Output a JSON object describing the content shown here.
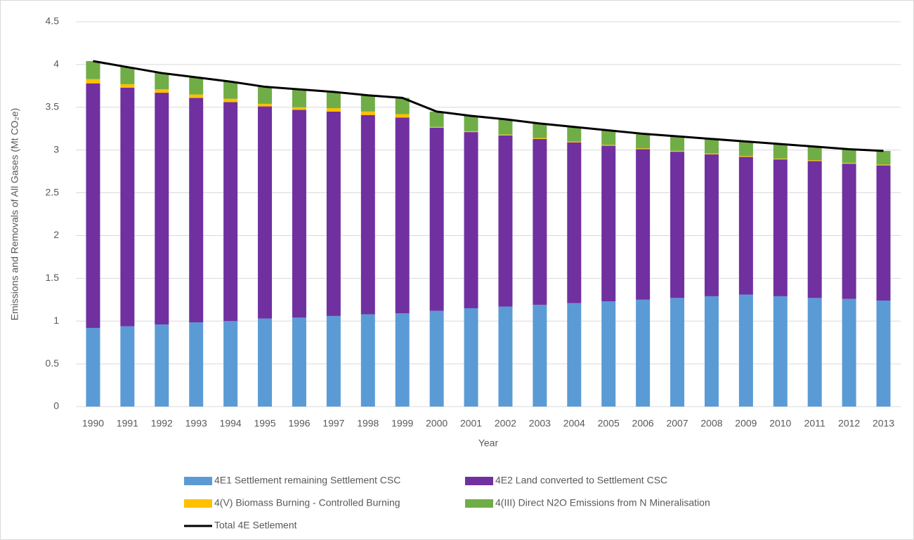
{
  "chart_data": {
    "type": "bar",
    "stacked": true,
    "x_label": "Year",
    "y_label": "Emissions and Removals of All Gases (Mt CO₂e)",
    "categories": [
      "1990",
      "1991",
      "1992",
      "1993",
      "1994",
      "1995",
      "1996",
      "1997",
      "1998",
      "1999",
      "2000",
      "2001",
      "2002",
      "2003",
      "2004",
      "2005",
      "2006",
      "2007",
      "2008",
      "2009",
      "2010",
      "2011",
      "2012",
      "2013"
    ],
    "series": [
      {
        "name": "4E1 Settlement remaining Settlement CSC",
        "color": "#5b9bd5",
        "values": [
          0.92,
          0.94,
          0.96,
          0.985,
          1.0,
          1.03,
          1.04,
          1.06,
          1.08,
          1.09,
          1.12,
          1.15,
          1.17,
          1.19,
          1.21,
          1.23,
          1.25,
          1.27,
          1.29,
          1.31,
          1.29,
          1.27,
          1.26,
          1.24
        ]
      },
      {
        "name": "4E2 Land converted to Settlement CSC",
        "color": "#7030a0",
        "values": [
          2.86,
          2.79,
          2.71,
          2.625,
          2.56,
          2.48,
          2.43,
          2.39,
          2.33,
          2.29,
          2.14,
          2.06,
          2.0,
          1.94,
          1.88,
          1.82,
          1.76,
          1.71,
          1.66,
          1.61,
          1.6,
          1.6,
          1.58,
          1.58
        ]
      },
      {
        "name": "4(V) Biomass Burning - Controlled Burning",
        "color": "#ffc000",
        "values": [
          0.05,
          0.04,
          0.04,
          0.04,
          0.04,
          0.03,
          0.03,
          0.04,
          0.04,
          0.04,
          0.01,
          0.01,
          0.01,
          0.01,
          0.01,
          0.01,
          0.01,
          0.01,
          0.01,
          0.01,
          0.01,
          0.01,
          0.01,
          0.01
        ]
      },
      {
        "name": "4(III) Direct N2O Emissions from N Mineralisation",
        "color": "#70ad47",
        "values": [
          0.21,
          0.2,
          0.19,
          0.2,
          0.2,
          0.2,
          0.21,
          0.19,
          0.19,
          0.19,
          0.18,
          0.18,
          0.18,
          0.17,
          0.17,
          0.17,
          0.17,
          0.17,
          0.17,
          0.17,
          0.17,
          0.16,
          0.16,
          0.16
        ]
      },
      {
        "name": "Total 4E Setlement",
        "color": "#000000",
        "type": "line",
        "values": [
          4.04,
          3.97,
          3.9,
          3.85,
          3.8,
          3.74,
          3.71,
          3.68,
          3.64,
          3.61,
          3.45,
          3.4,
          3.36,
          3.31,
          3.27,
          3.23,
          3.19,
          3.16,
          3.13,
          3.1,
          3.07,
          3.04,
          3.01,
          2.99
        ]
      }
    ],
    "ylim": [
      0,
      4.5
    ],
    "yticks": [
      0,
      0.5,
      1,
      1.5,
      2,
      2.5,
      3,
      3.5,
      4,
      4.5
    ],
    "grid": true
  }
}
